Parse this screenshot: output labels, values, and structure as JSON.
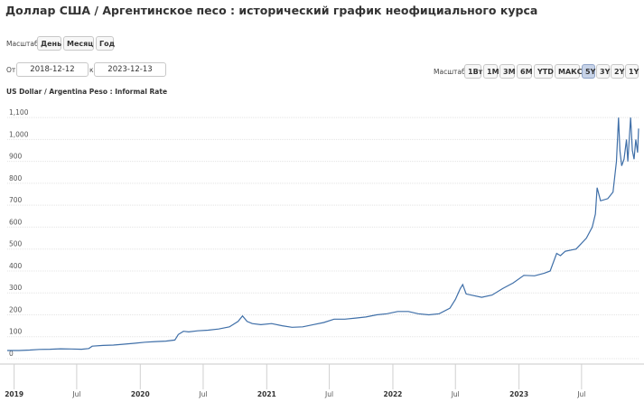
{
  "page_title": "Доллар США / Аргентинское песо : исторический график неофициального курса",
  "scale_top": {
    "label": "Масштаб:",
    "buttons": [
      "День",
      "Месяц",
      "Год"
    ]
  },
  "date_range": {
    "from_label": "От:",
    "from_value": "2018-12-12",
    "to_label": "к:",
    "to_value": "2023-12-13"
  },
  "zoom": {
    "label": "Масштаб:",
    "buttons": [
      "1Вт",
      "1M",
      "3M",
      "6M",
      "YTD",
      "МАКС",
      "5Y",
      "3Y",
      "2Y",
      "1Y"
    ],
    "active": "5Y"
  },
  "chart_data": {
    "type": "line",
    "title": "US Dollar / Argentina Peso : Informal Rate",
    "xlabel": "",
    "ylabel": "",
    "ylim": [
      0,
      1150
    ],
    "xlim": [
      "2018-12-12",
      "2023-12-13"
    ],
    "y_ticks": [
      "0",
      "100",
      "200",
      "300",
      "400",
      "500",
      "600",
      "700",
      "800",
      "900",
      "1,000",
      "1,100"
    ],
    "x_ticks": [
      {
        "label": "2019",
        "date": "2019-01-01",
        "bold": true
      },
      {
        "label": "Jul",
        "date": "2019-07-01",
        "bold": false
      },
      {
        "label": "2020",
        "date": "2020-01-01",
        "bold": true
      },
      {
        "label": "Jul",
        "date": "2020-07-01",
        "bold": false
      },
      {
        "label": "2021",
        "date": "2021-01-01",
        "bold": true
      },
      {
        "label": "Jul",
        "date": "2021-07-01",
        "bold": false
      },
      {
        "label": "2022",
        "date": "2022-01-01",
        "bold": true
      },
      {
        "label": "Jul",
        "date": "2022-07-01",
        "bold": false
      },
      {
        "label": "2023",
        "date": "2023-01-01",
        "bold": true
      },
      {
        "label": "Jul",
        "date": "2023-07-01",
        "bold": false
      }
    ],
    "grid": {
      "horizontal": true,
      "vertical": false
    },
    "series": [
      {
        "name": "",
        "color": "#3f6fa8",
        "points": [
          [
            "2018-12-12",
            37
          ],
          [
            "2019-01-15",
            37
          ],
          [
            "2019-02-15",
            39
          ],
          [
            "2019-03-15",
            42
          ],
          [
            "2019-04-15",
            43
          ],
          [
            "2019-05-15",
            45
          ],
          [
            "2019-06-15",
            44
          ],
          [
            "2019-07-15",
            43
          ],
          [
            "2019-08-05",
            46
          ],
          [
            "2019-08-15",
            57
          ],
          [
            "2019-09-15",
            60
          ],
          [
            "2019-10-15",
            62
          ],
          [
            "2019-11-15",
            66
          ],
          [
            "2019-12-15",
            70
          ],
          [
            "2020-01-15",
            75
          ],
          [
            "2020-02-15",
            78
          ],
          [
            "2020-03-15",
            80
          ],
          [
            "2020-04-10",
            85
          ],
          [
            "2020-04-20",
            110
          ],
          [
            "2020-05-05",
            125
          ],
          [
            "2020-05-20",
            122
          ],
          [
            "2020-06-15",
            127
          ],
          [
            "2020-07-15",
            130
          ],
          [
            "2020-08-15",
            135
          ],
          [
            "2020-09-15",
            145
          ],
          [
            "2020-10-10",
            170
          ],
          [
            "2020-10-23",
            195
          ],
          [
            "2020-11-05",
            170
          ],
          [
            "2020-11-20",
            160
          ],
          [
            "2020-12-15",
            155
          ],
          [
            "2021-01-15",
            160
          ],
          [
            "2021-02-15",
            150
          ],
          [
            "2021-03-15",
            143
          ],
          [
            "2021-04-15",
            145
          ],
          [
            "2021-05-15",
            155
          ],
          [
            "2021-06-15",
            165
          ],
          [
            "2021-07-15",
            180
          ],
          [
            "2021-08-15",
            180
          ],
          [
            "2021-09-15",
            185
          ],
          [
            "2021-10-15",
            190
          ],
          [
            "2021-11-15",
            200
          ],
          [
            "2021-12-15",
            205
          ],
          [
            "2022-01-15",
            215
          ],
          [
            "2022-02-15",
            215
          ],
          [
            "2022-03-15",
            205
          ],
          [
            "2022-04-15",
            200
          ],
          [
            "2022-05-15",
            205
          ],
          [
            "2022-06-15",
            230
          ],
          [
            "2022-07-01",
            270
          ],
          [
            "2022-07-15",
            320
          ],
          [
            "2022-07-22",
            338
          ],
          [
            "2022-08-01",
            295
          ],
          [
            "2022-08-15",
            290
          ],
          [
            "2022-09-15",
            280
          ],
          [
            "2022-10-15",
            290
          ],
          [
            "2022-11-15",
            320
          ],
          [
            "2022-12-15",
            345
          ],
          [
            "2023-01-15",
            380
          ],
          [
            "2023-02-15",
            378
          ],
          [
            "2023-03-15",
            390
          ],
          [
            "2023-04-01",
            400
          ],
          [
            "2023-04-20",
            480
          ],
          [
            "2023-05-01",
            470
          ],
          [
            "2023-05-15",
            490
          ],
          [
            "2023-06-15",
            500
          ],
          [
            "2023-07-15",
            550
          ],
          [
            "2023-08-01",
            600
          ],
          [
            "2023-08-10",
            660
          ],
          [
            "2023-08-15",
            780
          ],
          [
            "2023-08-25",
            720
          ],
          [
            "2023-09-15",
            730
          ],
          [
            "2023-09-30",
            760
          ],
          [
            "2023-10-10",
            900
          ],
          [
            "2023-10-16",
            1100
          ],
          [
            "2023-10-20",
            950
          ],
          [
            "2023-10-25",
            880
          ],
          [
            "2023-11-01",
            910
          ],
          [
            "2023-11-08",
            1000
          ],
          [
            "2023-11-12",
            900
          ],
          [
            "2023-11-20",
            1100
          ],
          [
            "2023-11-25",
            950
          ],
          [
            "2023-11-30",
            910
          ],
          [
            "2023-12-05",
            1000
          ],
          [
            "2023-12-10",
            940
          ],
          [
            "2023-12-13",
            1050
          ]
        ]
      }
    ]
  }
}
